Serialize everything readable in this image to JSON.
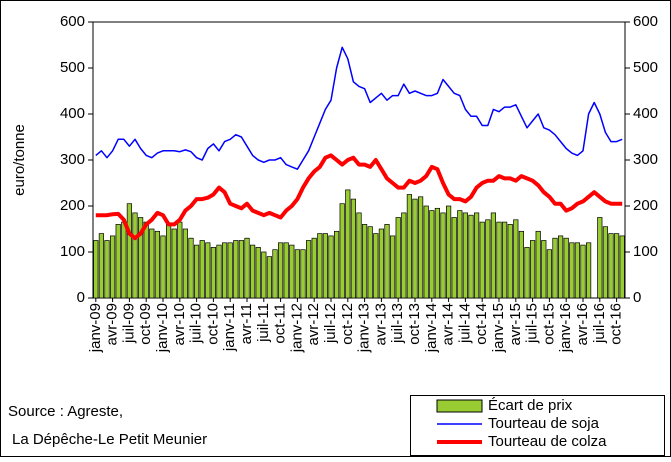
{
  "chart_data": {
    "type": "bar",
    "y_label": "euro/tonne",
    "source": [
      "Source : Agreste,",
      "La Dépêche-Le Petit Meunier"
    ],
    "categories": [
      "janv-09",
      null,
      null,
      "avr-09",
      null,
      null,
      "juil-09",
      null,
      null,
      "oct-09",
      null,
      null,
      "janv-10",
      null,
      null,
      "avr-10",
      null,
      null,
      "juil-10",
      null,
      null,
      "oct-10",
      null,
      null,
      "janv-11",
      null,
      null,
      "avr-11",
      null,
      null,
      "juil-11",
      null,
      null,
      "oct-11",
      null,
      null,
      "janv-12",
      null,
      null,
      "avr-12",
      null,
      null,
      "juil-12",
      null,
      null,
      "oct-12",
      null,
      null,
      "janv-13",
      null,
      null,
      "avr-13",
      null,
      null,
      "juil-13",
      null,
      null,
      "oct-13",
      null,
      null,
      "janv-14",
      null,
      null,
      "avr-14",
      null,
      null,
      "juil-14",
      null,
      null,
      "oct-14",
      null,
      null,
      "janv-15",
      null,
      null,
      "avr-15",
      null,
      null,
      "juil-15",
      null,
      null,
      "oct-15",
      null,
      null,
      "janv-16",
      null,
      null,
      "avr-16",
      null,
      null,
      "juil-16",
      null,
      null,
      "oct-16",
      null
    ],
    "series": [
      {
        "name": "Écart de prix",
        "type": "bar",
        "color": "#99cc33",
        "values": [
          125,
          140,
          125,
          135,
          160,
          165,
          205,
          185,
          175,
          165,
          150,
          145,
          135,
          160,
          150,
          165,
          150,
          130,
          115,
          125,
          120,
          110,
          115,
          120,
          120,
          125,
          125,
          130,
          115,
          110,
          100,
          90,
          105,
          120,
          120,
          115,
          105,
          105,
          125,
          130,
          140,
          140,
          135,
          145,
          205,
          235,
          215,
          185,
          160,
          155,
          140,
          150,
          160,
          135,
          175,
          185,
          225,
          215,
          220,
          200,
          190,
          195,
          185,
          200,
          175,
          190,
          185,
          180,
          185,
          165,
          170,
          185,
          165,
          165,
          160,
          170,
          145,
          110,
          125,
          145,
          125,
          105,
          130,
          135,
          130,
          120,
          120,
          115,
          120,
          null,
          175,
          155,
          140,
          140,
          135
        ]
      },
      {
        "name": "Tourteau de soja",
        "type": "line",
        "axis": "y2",
        "color": "#0000ff",
        "values": [
          310,
          320,
          305,
          320,
          345,
          345,
          330,
          345,
          325,
          310,
          305,
          315,
          320,
          320,
          320,
          318,
          322,
          318,
          305,
          300,
          325,
          335,
          320,
          340,
          345,
          355,
          350,
          330,
          310,
          300,
          295,
          300,
          300,
          305,
          290,
          285,
          280,
          300,
          320,
          350,
          380,
          410,
          430,
          500,
          545,
          520,
          470,
          460,
          455,
          425,
          435,
          445,
          430,
          440,
          440,
          465,
          445,
          450,
          445,
          440,
          440,
          445,
          475,
          460,
          445,
          440,
          410,
          395,
          395,
          375,
          375,
          410,
          405,
          415,
          415,
          420,
          395,
          370,
          385,
          400,
          370,
          365,
          355,
          340,
          325,
          315,
          310,
          320,
          400,
          425,
          400,
          360,
          340,
          340,
          345
        ]
      },
      {
        "name": "Tourteau de colza",
        "type": "line",
        "axis": "y2",
        "color": "#ff0000",
        "values": [
          180,
          180,
          180,
          182,
          183,
          170,
          140,
          130,
          140,
          160,
          170,
          185,
          180,
          160,
          160,
          170,
          190,
          200,
          215,
          215,
          218,
          225,
          240,
          230,
          205,
          200,
          195,
          205,
          190,
          185,
          180,
          185,
          180,
          175,
          190,
          200,
          215,
          240,
          260,
          275,
          285,
          305,
          310,
          300,
          290,
          300,
          305,
          290,
          290,
          285,
          300,
          280,
          260,
          250,
          240,
          240,
          255,
          250,
          255,
          265,
          285,
          280,
          250,
          225,
          215,
          215,
          210,
          220,
          240,
          250,
          255,
          255,
          265,
          260,
          260,
          255,
          265,
          260,
          255,
          245,
          230,
          220,
          205,
          205,
          190,
          195,
          205,
          210,
          220,
          230,
          220,
          210,
          205,
          205,
          205
        ]
      }
    ],
    "ylim": [
      0,
      600
    ],
    "yticks": [
      0,
      100,
      200,
      300,
      400,
      500,
      600
    ],
    "y2lim": [
      0,
      600
    ],
    "y2ticks": [
      0,
      100,
      200,
      300,
      400,
      500,
      600
    ],
    "legend": "bottom-right"
  }
}
